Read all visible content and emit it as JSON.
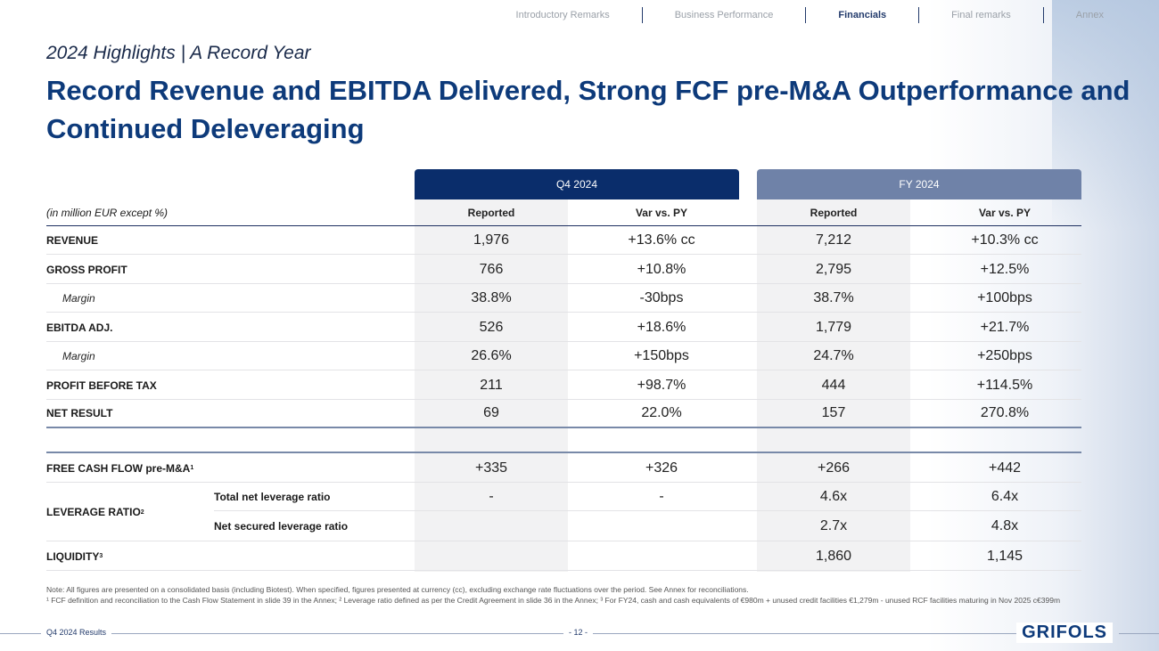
{
  "nav": {
    "items": [
      "Introductory Remarks",
      "Business Performance",
      "Financials",
      "Final remarks",
      "Annex"
    ],
    "active": "Financials"
  },
  "subtitle": "2024 Highlights | A Record Year",
  "title": "Record Revenue and EBITDA Delivered, Strong FCF pre-M&A Outperformance and Continued Deleveraging",
  "table": {
    "group_q4": "Q4 2024",
    "group_fy": "FY 2024",
    "units_label": "(in million EUR except %)",
    "col_headers": [
      "Reported",
      "Var vs. PY",
      "Reported",
      "Var vs. PY"
    ],
    "rows": [
      {
        "label": "REVENUE",
        "values": [
          "1,976",
          "+13.6% cc",
          "7,212",
          "+10.3% cc"
        ]
      },
      {
        "label": "GROSS PROFIT",
        "values": [
          "766",
          "+10.8%",
          "2,795",
          "+12.5%"
        ]
      },
      {
        "label": "Margin",
        "values": [
          "38.8%",
          "-30bps",
          "38.7%",
          "+100bps"
        ]
      },
      {
        "label": "EBITDA ADJ.",
        "values": [
          "526",
          "+18.6%",
          "1,779",
          "+21.7%"
        ]
      },
      {
        "label": "Margin",
        "values": [
          "26.6%",
          "+150bps",
          "24.7%",
          "+250bps"
        ]
      },
      {
        "label": "PROFIT BEFORE TAX",
        "values": [
          "211",
          "+98.7%",
          "444",
          "+114.5%"
        ]
      },
      {
        "label": "NET RESULT",
        "values": [
          "69",
          "22.0%",
          "157",
          "270.8%"
        ]
      }
    ],
    "fcf": {
      "label": "FREE CASH FLOW pre-M&A",
      "sup": "1",
      "values": [
        "+335",
        "+326",
        "+266",
        "+442"
      ]
    },
    "leverage": {
      "label": "LEVERAGE RATIO",
      "sup": "2",
      "total": {
        "label": "Total net leverage ratio",
        "values": [
          "-",
          "-",
          "4.6x",
          "6.4x"
        ]
      },
      "secured": {
        "label": "Net secured leverage ratio",
        "values": [
          "",
          "",
          "2.7x",
          "4.8x"
        ]
      }
    },
    "liquidity": {
      "label": "LIQUIDITY",
      "sup": "3",
      "values": [
        "",
        "",
        "1,860",
        "1,145"
      ]
    }
  },
  "notes": {
    "line1": "Note: All figures are presented on a consolidated basis (including Biotest). When specified, figures presented at currency (cc), excluding exchange rate fluctuations over the period. See Annex for reconciliations.",
    "line2": "¹ FCF definition and reconciliation to the Cash Flow Statement in slide 39 in the Annex; ² Leverage ratio defined as per the Credit Agreement in slide 36 in the Annex; ³ For FY24, cash and cash equivalents of €980m + unused credit facilities €1,279m - unused RCF facilities maturing in Nov 2025 c€399m"
  },
  "footer": {
    "left": "Q4 2024 Results",
    "page": "- 12 -",
    "logo": "GRIFOLS"
  }
}
